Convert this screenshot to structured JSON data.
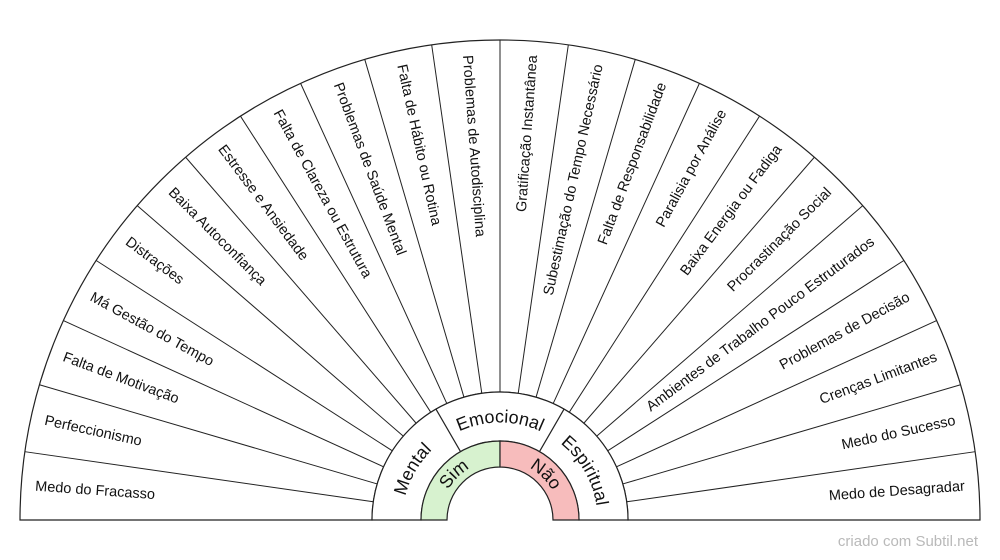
{
  "chart_data": {
    "type": "pendulum-chart",
    "sectors": [
      "Medo do Fracasso",
      "Perfeccionismo",
      "Falta de Motivação",
      "Má Gestão do Tempo",
      "Distrações",
      "Baixa Autoconfiança",
      "Estresse e Ansiedade",
      "Falta de Clareza ou Estrutura",
      "Problemas de Saúde Mental",
      "Falta de Hábito ou Rotina",
      "Problemas de Autodisciplina",
      "Gratificação Instantânea",
      "Subestimação do Tempo Necessário",
      "Falta de Responsabilidade",
      "Paralisia por Análise",
      "Baixa Energia ou Fadiga",
      "Procrastinação Social",
      "Ambientes de Trabalho Pouco Estruturados",
      "Problemas de Decisão",
      "Crenças Limitantes",
      "Medo do Sucesso",
      "Medo de Desagradar"
    ],
    "categories": [
      "Mental",
      "Emocional",
      "Espiritual"
    ],
    "answers": [
      {
        "label": "Sim",
        "color": "#d7f2cf"
      },
      {
        "label": "Não",
        "color": "#f7bcbc"
      }
    ]
  },
  "credit": "criado com Subtil.net"
}
